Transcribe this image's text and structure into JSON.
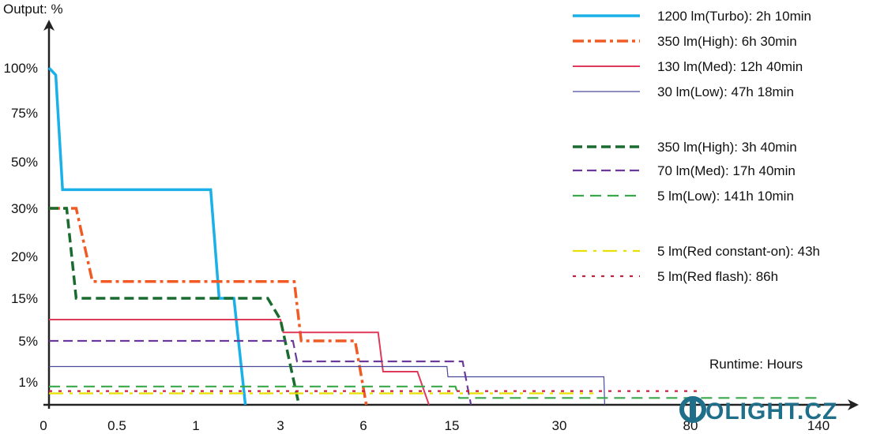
{
  "chart_data": {
    "type": "line",
    "ylabel": "Output: %",
    "xlabel": "Runtime: Hours",
    "y_ticks": [
      "100%",
      "75%",
      "50%",
      "30%",
      "20%",
      "15%",
      "5%",
      "1%"
    ],
    "x_ticks": [
      "0",
      "0.5",
      "1",
      "3",
      "6",
      "15",
      "30",
      "80",
      "140"
    ],
    "series": [
      {
        "name": "1200 lm(Turbo): 2h 10min",
        "color": "#1ab0e8",
        "x": [
          0,
          0.05,
          0.1,
          1.35,
          1.55,
          1.55,
          1.85,
          1.9,
          2.17
        ],
        "y": [
          100,
          96,
          38,
          38,
          15,
          15,
          15,
          15,
          0
        ]
      },
      {
        "name": "350 lm(High): 6h 30min",
        "color": "#f15a22",
        "x": [
          0,
          0.2,
          0.32,
          3.5,
          3.75,
          5.7,
          6.3
        ],
        "y": [
          30,
          30,
          17,
          17,
          5,
          5,
          0
        ]
      },
      {
        "name": "130 lm(Med): 12h 40min",
        "color": "#e03a5a",
        "x": [
          0,
          3.0,
          3.1,
          7.5,
          8.0,
          11.5,
          12.67
        ],
        "y": [
          10,
          10,
          7,
          7,
          2,
          2,
          0
        ]
      },
      {
        "name": "30 lm(Low): 47h 18min",
        "color": "#4a4a9a",
        "x": [
          0,
          14.5,
          14.6,
          47.0,
          47.3
        ],
        "y": [
          2.5,
          2.5,
          1.5,
          1.5,
          0
        ]
      },
      {
        "name": "350 lm(High): 3h 40min",
        "color": "#1a6b30",
        "x": [
          0,
          0.13,
          0.2,
          2.7,
          3.0,
          3.67
        ],
        "y": [
          30,
          30,
          15,
          15,
          10,
          0
        ]
      },
      {
        "name": "70 lm(Med): 17h 40min",
        "color": "#6a3a9a",
        "x": [
          0,
          3.45,
          3.6,
          16.5,
          17.67
        ],
        "y": [
          5,
          5,
          3,
          3,
          0
        ]
      },
      {
        "name": "5 lm(Low): 141h 10min",
        "color": "#3aa84a",
        "x": [
          0,
          15.5,
          16.0,
          141.17
        ],
        "y": [
          0.8,
          0.8,
          0.3,
          0.3
        ]
      },
      {
        "name": "5 lm(Red constant-on): 43h",
        "color": "#e8e000",
        "x": [
          0,
          43.0
        ],
        "y": [
          0.5,
          0.5
        ]
      },
      {
        "name": "5 lm(Red flash): 86h",
        "color": "#c8203a",
        "x": [
          0,
          86.0
        ],
        "y": [
          0.6,
          0.6
        ]
      }
    ],
    "grid": false,
    "legend_position": "top-right"
  },
  "logo": {
    "text": "OLIGHT.CZ"
  }
}
